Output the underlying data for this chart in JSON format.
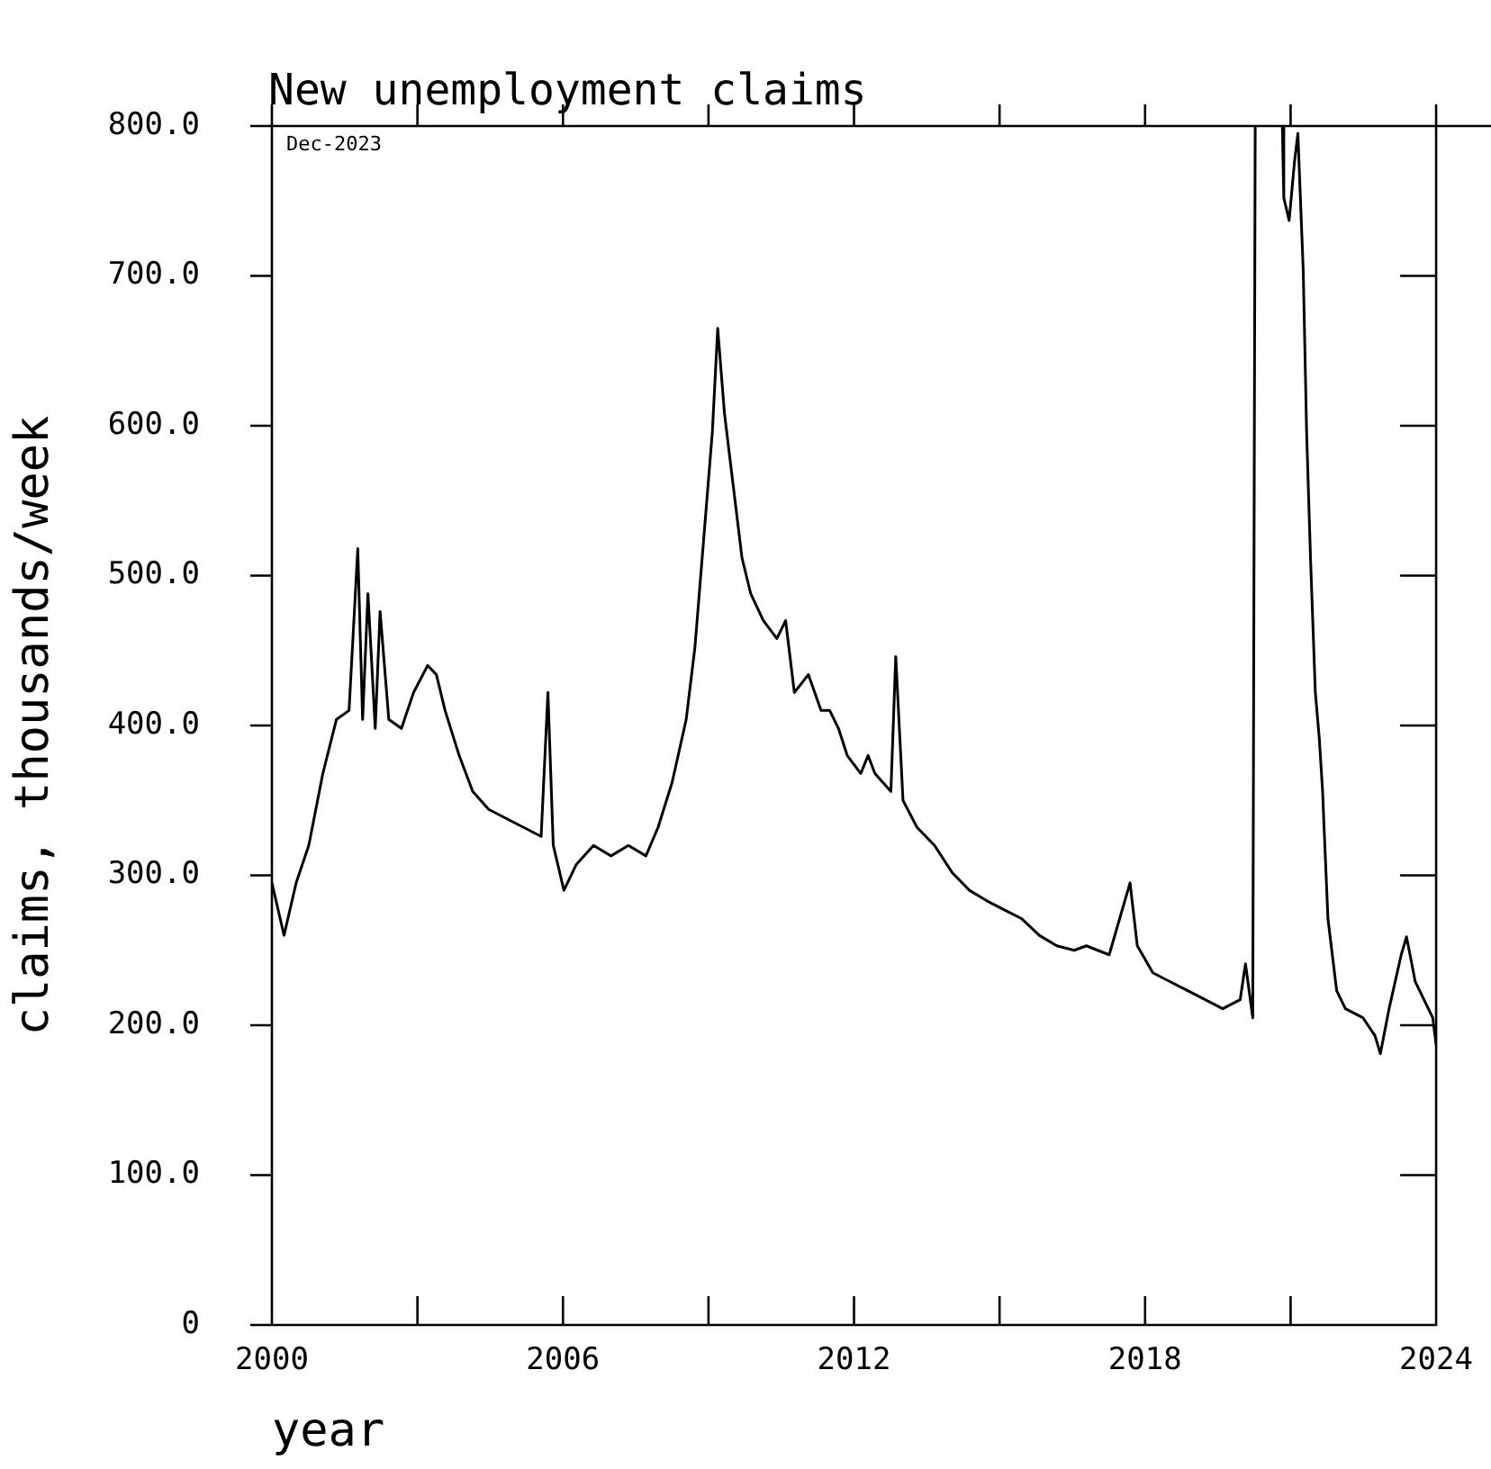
{
  "chart_data": {
    "type": "line",
    "title": "New unemployment claims",
    "xlabel": "year",
    "ylabel": "claims, thousands/week",
    "annotations": [
      "Dec-2023"
    ],
    "x": [
      2000,
      2000.25,
      2000.5,
      2000.76,
      2001.05,
      2001.33,
      2001.59,
      2001.77,
      2001.87,
      2001.98,
      2002.13,
      2002.23,
      2002.41,
      2002.67,
      2002.92,
      2003.21,
      2003.39,
      2003.57,
      2003.86,
      2004.14,
      2004.47,
      2004.83,
      2005.19,
      2005.55,
      2005.69,
      2005.8,
      2006.02,
      2006.27,
      2006.63,
      2006.99,
      2007.35,
      2007.71,
      2007.96,
      2008.25,
      2008.54,
      2008.72,
      2008.9,
      2009.08,
      2009.19,
      2009.33,
      2009.51,
      2009.69,
      2009.87,
      2010.13,
      2010.41,
      2010.59,
      2010.77,
      2011.06,
      2011.32,
      2011.5,
      2011.68,
      2011.86,
      2012.14,
      2012.29,
      2012.43,
      2012.76,
      2012.86,
      2013.01,
      2013.3,
      2013.66,
      2014.02,
      2014.38,
      2014.74,
      2015.1,
      2015.46,
      2015.82,
      2016.18,
      2016.54,
      2016.79,
      2017.26,
      2017.69,
      2017.84,
      2018.16,
      2018.52,
      2018.88,
      2019.24,
      2019.6,
      2019.96,
      2020.07,
      2020.22,
      2020.27,
      2020.5,
      2020.83,
      2020.86,
      2020.97,
      2021.08,
      2021.15,
      2021.26,
      2021.33,
      2021.41,
      2021.51,
      2021.59,
      2021.66,
      2021.69,
      2021.77,
      2021.95,
      2022.13,
      2022.49,
      2022.74,
      2022.85,
      2023.03,
      2023.28,
      2023.39,
      2023.57,
      2023.75,
      2023.93,
      2024
    ],
    "series": [
      {
        "color": "#000000",
        "values": [
          295,
          260,
          295,
          320,
          368,
          404,
          410,
          518,
          404,
          488,
          398,
          476,
          404,
          398,
          422,
          440,
          434,
          410,
          380,
          356,
          344,
          338,
          332,
          326,
          422,
          320,
          290,
          307,
          320,
          313,
          320,
          313,
          332,
          362,
          404,
          452,
          524,
          596,
          665,
          608,
          560,
          512,
          488,
          470,
          458,
          470,
          422,
          434,
          410,
          410,
          398,
          380,
          368,
          380,
          368,
          356,
          446,
          350,
          332,
          320,
          302,
          290,
          283,
          277,
          271,
          260,
          253,
          250,
          253,
          247,
          295,
          253,
          235,
          229,
          223,
          217,
          211,
          217,
          241,
          205,
          800,
          null,
          800,
          752,
          737,
          776,
          795,
          704,
          596,
          512,
          422,
          392,
          356,
          332,
          271,
          223,
          211,
          205,
          193,
          181,
          211,
          247,
          259,
          229,
          217,
          205,
          187
        ]
      }
    ],
    "xlim": [
      2000,
      2024
    ],
    "xticks": [
      2000,
      {
        "value": 2003,
        "label": null
      },
      2006,
      {
        "value": 2009,
        "label": null
      },
      2012,
      {
        "value": 2015,
        "label": null
      },
      2018,
      {
        "value": 2021,
        "label": null
      },
      2024
    ],
    "ylim": [
      0,
      800
    ],
    "yticks": [
      0,
      {
        "value": 100,
        "label": "100.0"
      },
      {
        "value": 200,
        "label": "200.0"
      },
      {
        "value": 300,
        "label": "300.0"
      },
      {
        "value": 400,
        "label": "400.0"
      },
      {
        "value": 500,
        "label": "500.0"
      },
      {
        "value": 600,
        "label": "600.0"
      },
      {
        "value": 700,
        "label": "700.0"
      },
      {
        "value": 800,
        "label": "800.0"
      }
    ],
    "grid": false,
    "legend": false,
    "marker": "none",
    "line_style": "solid"
  }
}
